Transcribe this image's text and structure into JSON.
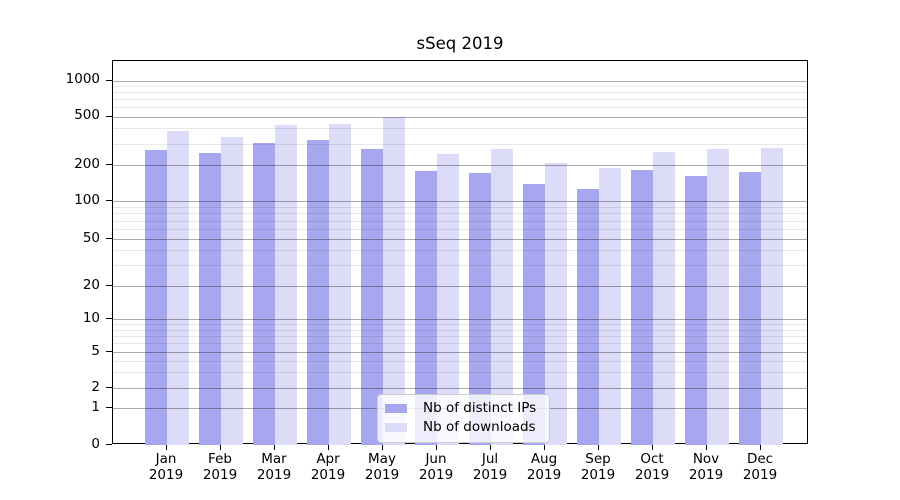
{
  "chart_data": {
    "type": "bar",
    "title": "sSeq 2019",
    "year": "2019",
    "months": [
      "Jan",
      "Feb",
      "Mar",
      "Apr",
      "May",
      "Jun",
      "Jul",
      "Aug",
      "Sep",
      "Oct",
      "Nov",
      "Dec"
    ],
    "series": [
      {
        "name": "Nb of distinct IPs",
        "color": "#a7a7f0",
        "values": [
          265,
          249,
          301,
          323,
          269,
          177,
          172,
          138,
          126,
          181,
          161,
          174
        ]
      },
      {
        "name": "Nb of downloads",
        "color": "#dcdcf8",
        "values": [
          381,
          340,
          422,
          430,
          491,
          247,
          270,
          207,
          188,
          256,
          272,
          277
        ]
      }
    ],
    "y_axis": {
      "ticks": [
        0,
        1,
        2,
        5,
        10,
        20,
        50,
        100,
        200,
        500,
        1000
      ],
      "scale": "symlog",
      "range": [
        0,
        1465
      ]
    },
    "legend": {
      "position": "lower center"
    },
    "grid": {
      "major": true,
      "minor": true
    }
  }
}
